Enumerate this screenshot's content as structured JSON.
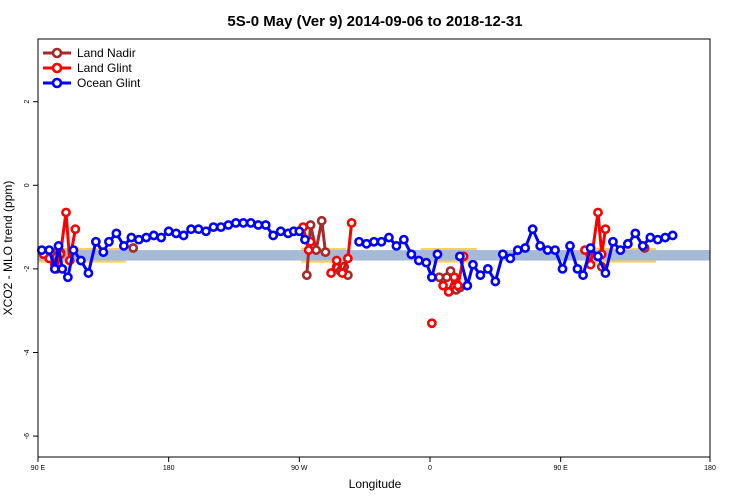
{
  "chart_data": {
    "type": "line",
    "title": "5S-0 May (Ver 9)   2014-09-06 to 2018-12-31",
    "xlabel": "Longitude",
    "ylabel": "XCO2 - MLO trend (ppm)",
    "xlim": [
      90,
      450
    ],
    "ylim": [
      -6.5,
      3.5
    ],
    "x_ticks": [
      {
        "value": 90,
        "label": "90 E"
      },
      {
        "value": 160,
        "label": "180"
      },
      {
        "value": 230,
        "label": "90 W"
      },
      {
        "value": 300,
        "label": "0"
      },
      {
        "value": 370,
        "label": "90 E"
      },
      {
        "value": 450,
        "label": "180"
      }
    ],
    "y_ticks": [
      {
        "value": 2,
        "label": "2"
      },
      {
        "value": 0,
        "label": "0"
      },
      {
        "value": -2,
        "label": "-2"
      },
      {
        "value": -4,
        "label": "-4"
      },
      {
        "value": -6,
        "label": "-6"
      }
    ],
    "legend": {
      "position": "top-left"
    },
    "bands": [
      {
        "color": "#ffd257",
        "y_range": [
          -1.85,
          -1.5
        ],
        "x_segments": [
          [
            90,
            137
          ],
          [
            231,
            255
          ],
          [
            295,
            325
          ],
          [
            385,
            421
          ]
        ]
      },
      {
        "color": "#a4bad6",
        "y_range": [
          -1.8,
          -1.55
        ],
        "x_segments": [
          [
            90,
            450
          ]
        ]
      }
    ],
    "series": [
      {
        "name": "Land Nadir",
        "color": "#a52a2a",
        "segments": [
          [
            [
              97,
              -1.6
            ],
            [
              100,
              -2.0
            ],
            [
              102,
              -1.6
            ]
          ],
          [
            [
              141,
              -1.5
            ]
          ],
          [
            [
              234,
              -2.15
            ],
            [
              236,
              -0.95
            ],
            [
              239,
              -1.55
            ],
            [
              242,
              -0.85
            ],
            [
              244,
              -1.6
            ]
          ],
          [
            [
              250,
              -1.95
            ],
            [
              252,
              -2.05
            ],
            [
              254,
              -1.95
            ],
            [
              256,
              -2.15
            ]
          ],
          [
            [
              305,
              -2.2
            ],
            [
              309,
              -2.2
            ],
            [
              311,
              -2.05
            ],
            [
              314,
              -2.5
            ],
            [
              316,
              -2.45
            ]
          ],
          [
            [
              392,
              -1.95
            ]
          ],
          [
            [
              415,
              -1.5
            ]
          ]
        ]
      },
      {
        "name": "Land Glint",
        "color": "#ff0000",
        "segments": [
          [
            [
              93,
              -1.65
            ],
            [
              96,
              -1.75
            ],
            [
              99,
              -1.9
            ],
            [
              102,
              -1.65
            ],
            [
              105,
              -0.65
            ],
            [
              107,
              -1.8
            ],
            [
              110,
              -1.05
            ]
          ],
          [
            [
              232,
              -1.0
            ],
            [
              235,
              -1.55
            ],
            [
              236,
              -1.35
            ]
          ],
          [
            [
              247,
              -2.1
            ],
            [
              250,
              -1.8
            ],
            [
              253,
              -2.1
            ],
            [
              256,
              -1.75
            ],
            [
              258,
              -0.9
            ]
          ],
          [
            [
              301,
              -3.3
            ]
          ],
          [
            [
              307,
              -2.4
            ],
            [
              310,
              -2.55
            ],
            [
              313,
              -2.2
            ],
            [
              315,
              -2.4
            ],
            [
              318,
              -1.7
            ]
          ],
          [
            [
              383,
              -1.55
            ],
            [
              386,
              -1.9
            ],
            [
              390,
              -0.65
            ],
            [
              392,
              -1.65
            ],
            [
              394,
              -1.05
            ]
          ]
        ]
      },
      {
        "name": "Ocean Glint",
        "color": "#0000ff",
        "segments": [
          [
            [
              92,
              -1.55
            ],
            [
              96,
              -1.55
            ],
            [
              99,
              -2.0
            ],
            [
              101,
              -1.45
            ],
            [
              103,
              -2.0
            ],
            [
              106,
              -2.2
            ],
            [
              109,
              -1.55
            ],
            [
              113,
              -1.8
            ],
            [
              117,
              -2.1
            ],
            [
              121,
              -1.35
            ],
            [
              125,
              -1.6
            ],
            [
              128,
              -1.35
            ],
            [
              132,
              -1.15
            ],
            [
              136,
              -1.45
            ],
            [
              140,
              -1.25
            ],
            [
              144,
              -1.3
            ],
            [
              148,
              -1.25
            ],
            [
              152,
              -1.2
            ],
            [
              156,
              -1.25
            ],
            [
              160,
              -1.1
            ],
            [
              164,
              -1.15
            ],
            [
              168,
              -1.2
            ],
            [
              172,
              -1.05
            ],
            [
              176,
              -1.05
            ],
            [
              180,
              -1.1
            ],
            [
              184,
              -1.0
            ],
            [
              188,
              -1.0
            ],
            [
              192,
              -0.95
            ],
            [
              196,
              -0.9
            ],
            [
              200,
              -0.9
            ],
            [
              204,
              -0.9
            ],
            [
              208,
              -0.95
            ],
            [
              212,
              -0.95
            ],
            [
              216,
              -1.2
            ],
            [
              220,
              -1.1
            ],
            [
              224,
              -1.15
            ],
            [
              227,
              -1.1
            ],
            [
              230,
              -1.1
            ],
            [
              233,
              -1.3
            ]
          ],
          [
            [
              262,
              -1.35
            ],
            [
              266,
              -1.4
            ],
            [
              270,
              -1.35
            ],
            [
              274,
              -1.35
            ],
            [
              278,
              -1.25
            ],
            [
              282,
              -1.45
            ],
            [
              286,
              -1.3
            ],
            [
              290,
              -1.65
            ],
            [
              294,
              -1.8
            ],
            [
              298,
              -1.85
            ],
            [
              301,
              -2.2
            ],
            [
              304,
              -1.65
            ]
          ],
          [
            [
              316,
              -1.7
            ],
            [
              320,
              -2.4
            ],
            [
              323,
              -1.9
            ],
            [
              327,
              -2.15
            ],
            [
              331,
              -2.0
            ],
            [
              335,
              -2.3
            ],
            [
              339,
              -1.65
            ],
            [
              343,
              -1.75
            ],
            [
              347,
              -1.55
            ],
            [
              351,
              -1.5
            ],
            [
              355,
              -1.05
            ],
            [
              359,
              -1.45
            ],
            [
              363,
              -1.55
            ],
            [
              367,
              -1.55
            ],
            [
              371,
              -2.0
            ],
            [
              375,
              -1.45
            ],
            [
              379,
              -2.0
            ],
            [
              382,
              -2.15
            ],
            [
              386,
              -1.5
            ],
            [
              390,
              -1.7
            ],
            [
              394,
              -2.1
            ],
            [
              398,
              -1.35
            ],
            [
              402,
              -1.55
            ],
            [
              406,
              -1.4
            ],
            [
              410,
              -1.15
            ],
            [
              414,
              -1.45
            ],
            [
              418,
              -1.25
            ],
            [
              422,
              -1.3
            ],
            [
              426,
              -1.25
            ],
            [
              430,
              -1.2
            ]
          ]
        ]
      }
    ]
  }
}
